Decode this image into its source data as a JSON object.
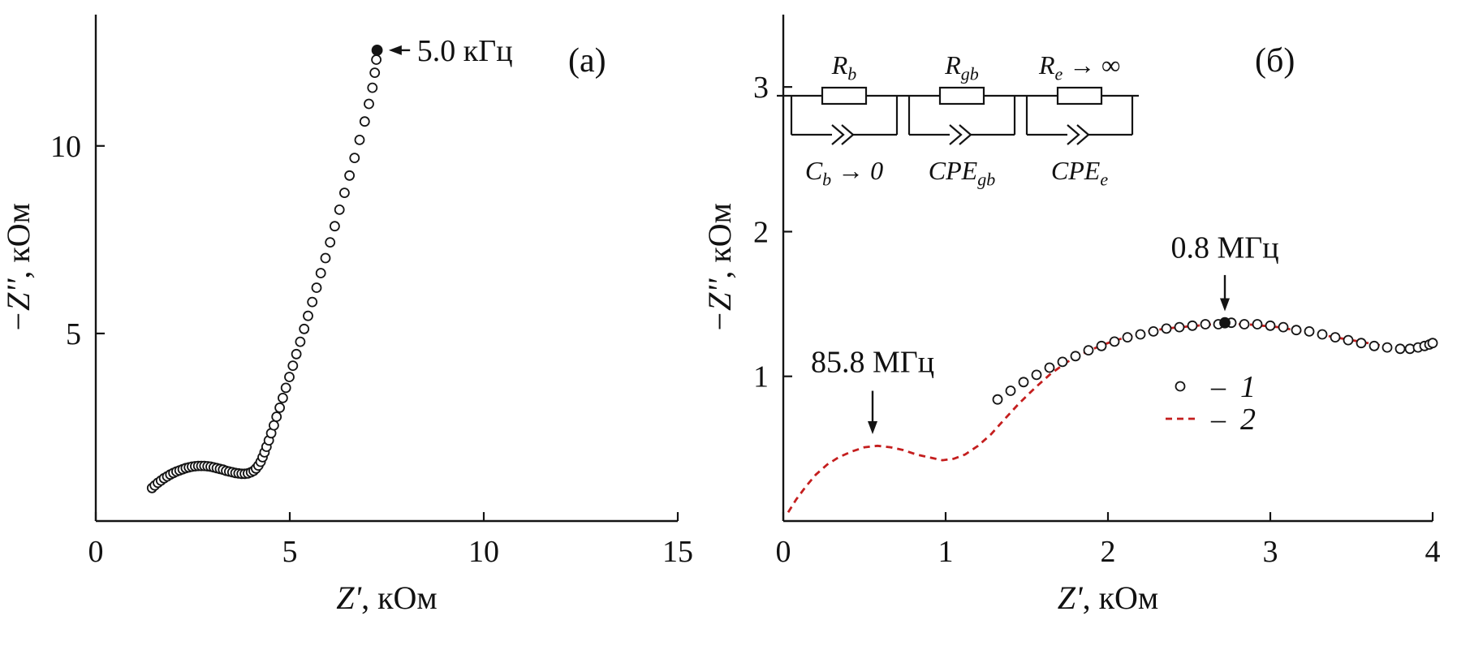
{
  "figure": {
    "background": "#ffffff",
    "axis_color": "#141414",
    "accent_red": "#c41e1e"
  },
  "chart_data": [
    {
      "panel_label": "(a)",
      "type": "scatter",
      "xlabel": {
        "italic": "Z'",
        "rest": ", кОм"
      },
      "ylabel": {
        "italic": "−Z''",
        "rest": ", кОм"
      },
      "xlim": [
        0,
        15
      ],
      "ylim": [
        0,
        13.5
      ],
      "xticks": [
        0,
        5,
        10,
        15
      ],
      "yticks": [
        5,
        10
      ],
      "grid": false,
      "series": [
        {
          "name": "impedance-spectrum",
          "marker": "open-circle",
          "color": "#141414",
          "points": [
            [
              1.45,
              0.88
            ],
            [
              1.52,
              0.95
            ],
            [
              1.6,
              1.02
            ],
            [
              1.68,
              1.08
            ],
            [
              1.76,
              1.14
            ],
            [
              1.84,
              1.19
            ],
            [
              1.92,
              1.24
            ],
            [
              2.0,
              1.28
            ],
            [
              2.08,
              1.32
            ],
            [
              2.16,
              1.35
            ],
            [
              2.24,
              1.38
            ],
            [
              2.32,
              1.41
            ],
            [
              2.4,
              1.43
            ],
            [
              2.48,
              1.45
            ],
            [
              2.56,
              1.46
            ],
            [
              2.64,
              1.47
            ],
            [
              2.72,
              1.47
            ],
            [
              2.8,
              1.47
            ],
            [
              2.88,
              1.46
            ],
            [
              2.96,
              1.45
            ],
            [
              3.04,
              1.43
            ],
            [
              3.12,
              1.41
            ],
            [
              3.2,
              1.39
            ],
            [
              3.28,
              1.37
            ],
            [
              3.36,
              1.34
            ],
            [
              3.44,
              1.32
            ],
            [
              3.52,
              1.3
            ],
            [
              3.6,
              1.28
            ],
            [
              3.68,
              1.27
            ],
            [
              3.76,
              1.26
            ],
            [
              3.84,
              1.26
            ],
            [
              3.92,
              1.27
            ],
            [
              4.0,
              1.3
            ],
            [
              4.07,
              1.34
            ],
            [
              4.13,
              1.4
            ],
            [
              4.19,
              1.48
            ],
            [
              4.25,
              1.58
            ],
            [
              4.3,
              1.7
            ],
            [
              4.35,
              1.83
            ],
            [
              4.4,
              1.98
            ],
            [
              4.46,
              2.15
            ],
            [
              4.52,
              2.34
            ],
            [
              4.59,
              2.55
            ],
            [
              4.66,
              2.78
            ],
            [
              4.74,
              3.02
            ],
            [
              4.82,
              3.28
            ],
            [
              4.9,
              3.55
            ],
            [
              4.99,
              3.84
            ],
            [
              5.08,
              4.14
            ],
            [
              5.17,
              4.45
            ],
            [
              5.27,
              4.78
            ],
            [
              5.37,
              5.12
            ],
            [
              5.47,
              5.47
            ],
            [
              5.58,
              5.84
            ],
            [
              5.69,
              6.22
            ],
            [
              5.8,
              6.61
            ],
            [
              5.92,
              7.01
            ],
            [
              6.04,
              7.43
            ],
            [
              6.16,
              7.86
            ],
            [
              6.28,
              8.3
            ],
            [
              6.41,
              8.75
            ],
            [
              6.54,
              9.21
            ],
            [
              6.67,
              9.68
            ],
            [
              6.8,
              10.16
            ],
            [
              6.93,
              10.65
            ],
            [
              7.04,
              11.12
            ],
            [
              7.13,
              11.55
            ],
            [
              7.19,
              11.95
            ],
            [
              7.23,
              12.3
            ]
          ]
        },
        {
          "name": "frequency-marker-5kHz",
          "marker": "filled-circle",
          "color": "#141414",
          "points": [
            [
              7.25,
              12.55
            ]
          ]
        }
      ],
      "annotations": [
        {
          "text": "5.0 кГц",
          "text_at": [
            8.28,
            12.55
          ],
          "arrow_from": [
            8.1,
            12.55
          ],
          "arrow_to": [
            7.55,
            12.55
          ],
          "align": "left-middle"
        }
      ]
    },
    {
      "panel_label": "(б)",
      "type": "scatter+line",
      "xlabel": {
        "italic": "Z'",
        "rest": ", кОм"
      },
      "ylabel": {
        "italic": "−Z''",
        "rest": ", кОм"
      },
      "xlim": [
        0,
        4
      ],
      "ylim": [
        0,
        3.5
      ],
      "xticks": [
        0,
        1,
        2,
        3,
        4
      ],
      "yticks": [
        1,
        2,
        3
      ],
      "grid": false,
      "series": [
        {
          "name": "fit-model",
          "legend_label": "2",
          "line": "dashed",
          "color": "#c41e1e",
          "points": [
            [
              0.03,
              0.06
            ],
            [
              0.08,
              0.15
            ],
            [
              0.14,
              0.24
            ],
            [
              0.2,
              0.32
            ],
            [
              0.27,
              0.39
            ],
            [
              0.34,
              0.44
            ],
            [
              0.42,
              0.48
            ],
            [
              0.5,
              0.51
            ],
            [
              0.58,
              0.52
            ],
            [
              0.66,
              0.51
            ],
            [
              0.74,
              0.49
            ],
            [
              0.82,
              0.46
            ],
            [
              0.9,
              0.44
            ],
            [
              0.98,
              0.42
            ],
            [
              1.05,
              0.43
            ],
            [
              1.12,
              0.46
            ],
            [
              1.2,
              0.52
            ],
            [
              1.28,
              0.6
            ],
            [
              1.36,
              0.7
            ],
            [
              1.45,
              0.81
            ],
            [
              1.55,
              0.92
            ],
            [
              1.65,
              1.02
            ],
            [
              1.75,
              1.1
            ],
            [
              1.85,
              1.16
            ],
            [
              1.95,
              1.21
            ],
            [
              2.05,
              1.25
            ],
            [
              2.15,
              1.28
            ],
            [
              2.25,
              1.31
            ],
            [
              2.35,
              1.33
            ],
            [
              2.45,
              1.34
            ],
            [
              2.55,
              1.35
            ],
            [
              2.65,
              1.36
            ],
            [
              2.75,
              1.36
            ],
            [
              2.85,
              1.36
            ],
            [
              2.95,
              1.35
            ],
            [
              3.05,
              1.34
            ],
            [
              3.15,
              1.32
            ],
            [
              3.25,
              1.3
            ],
            [
              3.35,
              1.28
            ],
            [
              3.45,
              1.26
            ],
            [
              3.55,
              1.24
            ],
            [
              3.65,
              1.22
            ],
            [
              3.75,
              1.2
            ],
            [
              3.85,
              1.19
            ],
            [
              3.92,
              1.2
            ],
            [
              4.0,
              1.22
            ]
          ]
        },
        {
          "name": "measured-spectrum",
          "legend_label": "1",
          "marker": "open-circle",
          "color": "#141414",
          "points": [
            [
              1.32,
              0.84
            ],
            [
              1.4,
              0.9
            ],
            [
              1.48,
              0.96
            ],
            [
              1.56,
              1.01
            ],
            [
              1.64,
              1.06
            ],
            [
              1.72,
              1.1
            ],
            [
              1.8,
              1.14
            ],
            [
              1.88,
              1.18
            ],
            [
              1.96,
              1.21
            ],
            [
              2.04,
              1.24
            ],
            [
              2.12,
              1.27
            ],
            [
              2.2,
              1.29
            ],
            [
              2.28,
              1.31
            ],
            [
              2.36,
              1.33
            ],
            [
              2.44,
              1.34
            ],
            [
              2.52,
              1.35
            ],
            [
              2.6,
              1.36
            ],
            [
              2.68,
              1.36
            ],
            [
              2.76,
              1.37
            ],
            [
              2.84,
              1.36
            ],
            [
              2.92,
              1.36
            ],
            [
              3.0,
              1.35
            ],
            [
              3.08,
              1.34
            ],
            [
              3.16,
              1.32
            ],
            [
              3.24,
              1.31
            ],
            [
              3.32,
              1.29
            ],
            [
              3.4,
              1.27
            ],
            [
              3.48,
              1.25
            ],
            [
              3.56,
              1.23
            ],
            [
              3.64,
              1.21
            ],
            [
              3.72,
              1.2
            ],
            [
              3.8,
              1.19
            ],
            [
              3.86,
              1.19
            ],
            [
              3.91,
              1.2
            ],
            [
              3.95,
              1.21
            ],
            [
              3.98,
              1.22
            ],
            [
              4.0,
              1.23
            ]
          ]
        },
        {
          "name": "frequency-marker-0p8MHz",
          "marker": "filled-circle",
          "color": "#141414",
          "points": [
            [
              2.72,
              1.37
            ]
          ]
        }
      ],
      "annotations": [
        {
          "text": "85.8 МГц",
          "text_at": [
            0.55,
            1.03
          ],
          "arrow_from": [
            0.55,
            0.9
          ],
          "arrow_to": [
            0.55,
            0.6
          ],
          "align": "center"
        },
        {
          "text": "0.8 МГц",
          "text_at": [
            2.72,
            1.82
          ],
          "arrow_from": [
            2.72,
            1.7
          ],
          "arrow_to": [
            2.72,
            1.45
          ],
          "align": "center"
        }
      ],
      "legend": [
        {
          "marker": "open-circle",
          "sep": "–",
          "label": "1"
        },
        {
          "marker": "dashed-line",
          "sep": "–",
          "label": "2"
        }
      ],
      "circuit": {
        "elements": [
          {
            "top_main": "R",
            "top_sub": "b",
            "top_suffix": "",
            "bottom_main": "C",
            "bottom_sub": "b",
            "bottom_suffix": " → 0"
          },
          {
            "top_main": "R",
            "top_sub": "gb",
            "top_suffix": "",
            "bottom_main": "CPE",
            "bottom_sub": "gb",
            "bottom_suffix": ""
          },
          {
            "top_main": "R",
            "top_sub": "e",
            "top_suffix": " → ∞",
            "bottom_main": "CPE",
            "bottom_sub": "e",
            "bottom_suffix": ""
          }
        ]
      }
    }
  ]
}
